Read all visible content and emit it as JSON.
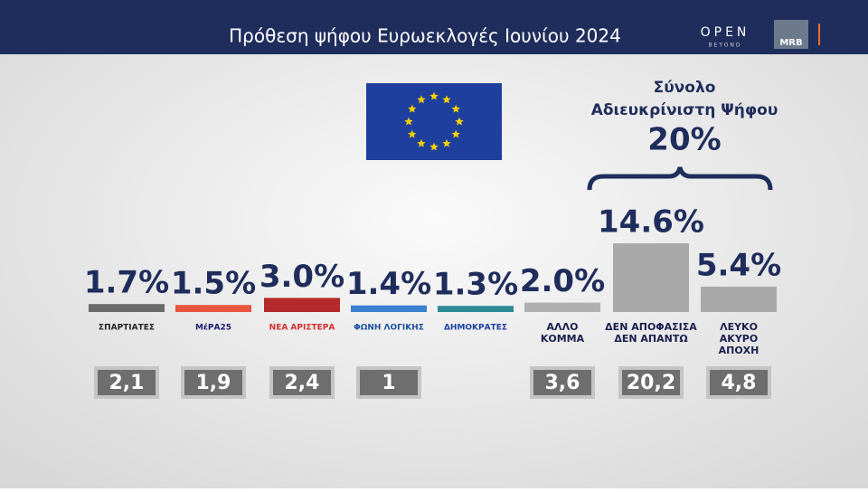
{
  "chart_data": {
    "type": "bar",
    "title": "Πρόθεση ψήφου Ευρωεκλογές Ιουνίου 2024",
    "categories": [
      [
        "ΣΠΑΡΤΙΑΤΕΣ"
      ],
      [
        "ΜέΡΑ25"
      ],
      [
        "ΝΕΑ ΑΡΙΣΤΕΡΑ"
      ],
      [
        "ΦΩΝΗ ΛΟΓΙΚΗΣ"
      ],
      [
        "ΔΗΜΟΚΡΑΤΕΣ"
      ],
      [
        "ΑΛΛΟ",
        "ΚΟΜΜΑ"
      ],
      [
        "ΔΕΝ ΑΠΟΦΑΣΙΣΑ",
        "ΔΕΝ ΑΠΑΝΤΩ"
      ],
      [
        "ΛΕΥΚΟ",
        "ΑΚΥΡΟ",
        "ΑΠΟΧΗ"
      ]
    ],
    "category_colors": [
      "#222222",
      "#1a1a6e",
      "#d32f2f",
      "#1c4f9c",
      "#1c3fa0",
      "#1a1f4e",
      "#1a1f4e",
      "#1a1f4e"
    ],
    "values": [
      1.7,
      1.5,
      3.0,
      1.4,
      1.3,
      2.0,
      14.6,
      5.4
    ],
    "value_labels": [
      "1.7%",
      "1.5%",
      "3.0%",
      "1.4%",
      "1.3%",
      "2.0%",
      "14.6%",
      "5.4%"
    ],
    "colors": [
      "#6b6b6b",
      "#e8553e",
      "#b52a2a",
      "#3a7fd0",
      "#2c8a95",
      "#b0b0b0",
      "#a9a9a9",
      "#a9a9a9"
    ],
    "previous_values": [
      2.1,
      1.9,
      2.4,
      1,
      null,
      3.6,
      20.2,
      4.8
    ],
    "previous_value_labels": [
      "2,1",
      "1,9",
      "2,4",
      "1",
      null,
      "3,6",
      "20,2",
      "4,8"
    ],
    "annotation": {
      "lines": [
        "Σύνολο",
        "Αδιευκρίνιστη Ψήφου"
      ],
      "value": 20,
      "value_label": "20%"
    }
  },
  "brand": {
    "open": "OPEN",
    "beyond": "BEYOND",
    "mrb": "MRB"
  }
}
